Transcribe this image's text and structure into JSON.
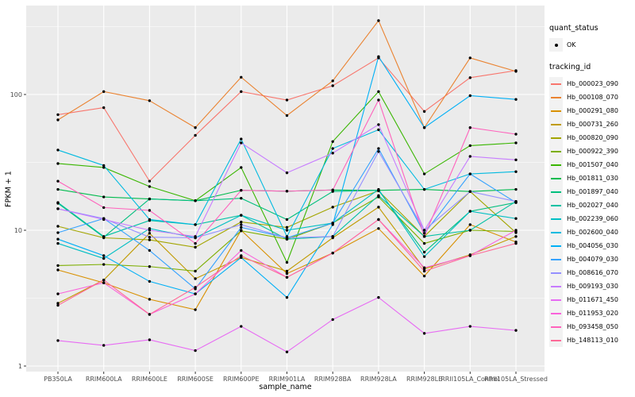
{
  "figure": {
    "panel_background": "#EBEBEB",
    "gridline_color": "#FFFFFF",
    "tick_label_color": "#4D4D4D",
    "tick_mark_color": "#333333",
    "point_color": "#000000"
  },
  "axes": {
    "x_title": "sample_name",
    "y_title": "FPKM + 1",
    "y_tick_labels": [
      "1",
      "10",
      "100"
    ]
  },
  "legend": {
    "quant_status_title": "quant_status",
    "quant_status_items": [
      {
        "label": "OK",
        "symbol": "black-point"
      }
    ],
    "tracking_id_title": "tracking_id"
  },
  "chart_data": {
    "type": "line",
    "title": "",
    "xlabel": "sample_name",
    "ylabel": "FPKM + 1",
    "y_scale": "log10",
    "ylim": [
      0.9,
      450
    ],
    "y_ticks": [
      1,
      10,
      100
    ],
    "y_minor_ticks": [
      3.1623,
      31.623,
      316.23
    ],
    "grid": true,
    "legend_position": "right",
    "point_marker": "small black dot at every vertex",
    "values_note": "values estimated from pixel positions on log axis",
    "categories": [
      "PB350LA",
      "RRIM600LA",
      "RRIM600LE",
      "RRIM600SE",
      "RRIM600PE",
      "RRIM901LA",
      "RRIM928BA",
      "RRIM928LA",
      "RRIM928LE",
      "RRII105LA_Control",
      "RRII105LA_Stressed"
    ],
    "quant_status_all_points": "OK",
    "series": [
      {
        "name": "Hb_000023_090",
        "color": "#F8766D",
        "values": [
          71,
          80,
          23,
          50,
          105,
          91,
          116,
          186,
          75,
          133,
          150
        ]
      },
      {
        "name": "Hb_000108_070",
        "color": "#EA8331",
        "values": [
          65,
          105,
          90,
          57,
          134,
          70,
          126,
          350,
          57,
          186,
          148
        ]
      },
      {
        "name": "Hb_000291_080",
        "color": "#D89000",
        "values": [
          5.1,
          4.1,
          3.1,
          2.6,
          10,
          4.8,
          6.8,
          10.3,
          4.6,
          11,
          8.2
        ]
      },
      {
        "name": "Hb_000731_260",
        "color": "#C09B00",
        "values": [
          2.9,
          4.3,
          9.5,
          4.4,
          6.3,
          5,
          8.8,
          14.8,
          5.2,
          6.6,
          9
        ]
      },
      {
        "name": "Hb_000820_090",
        "color": "#A3A500",
        "values": [
          10.7,
          8.8,
          8.5,
          7.5,
          11.5,
          10.5,
          14.8,
          19.5,
          9,
          19.3,
          9.6
        ]
      },
      {
        "name": "Hb_000922_390",
        "color": "#7CAE00",
        "values": [
          5.5,
          5.6,
          5.4,
          5,
          9.9,
          8.6,
          11.3,
          17.6,
          8,
          10,
          9.8
        ]
      },
      {
        "name": "Hb_001507_040",
        "color": "#39B600",
        "values": [
          31,
          29,
          21,
          16.5,
          29,
          5.8,
          45,
          105,
          26,
          42,
          44
        ]
      },
      {
        "name": "Hb_001811_030",
        "color": "#00BB4E",
        "values": [
          20,
          17.6,
          17,
          16.5,
          19.7,
          19.4,
          19.8,
          19.7,
          20,
          19.3,
          20
        ]
      },
      {
        "name": "Hb_001897_040",
        "color": "#00BF7D",
        "values": [
          15.8,
          8.9,
          17,
          16.5,
          17.2,
          12,
          19.3,
          19.7,
          6.9,
          13.8,
          16
        ]
      },
      {
        "name": "Hb_002027_040",
        "color": "#00C1A3",
        "values": [
          16,
          9,
          11.8,
          11,
          12.9,
          8.6,
          9,
          18,
          9,
          10,
          16.3
        ]
      },
      {
        "name": "Hb_002239_060",
        "color": "#00BFC4",
        "values": [
          8,
          6.2,
          10.3,
          8.8,
          12.9,
          10,
          11.3,
          20,
          6.4,
          13.8,
          12.2
        ]
      },
      {
        "name": "Hb_002600_040",
        "color": "#00BAE0",
        "values": [
          39,
          30,
          12,
          11,
          47,
          9,
          40,
          55,
          20,
          26,
          27
        ]
      },
      {
        "name": "Hb_004056_030",
        "color": "#00B0F6",
        "values": [
          8.6,
          6.5,
          4.2,
          3.4,
          6.3,
          3.2,
          11,
          190,
          57,
          98,
          92
        ]
      },
      {
        "name": "Hb_004079_030",
        "color": "#35A2FF",
        "values": [
          9.6,
          12.2,
          7.1,
          3.7,
          10.5,
          8.8,
          11.3,
          40,
          9.5,
          26,
          16
        ]
      },
      {
        "name": "Hb_008616_070",
        "color": "#9590FF",
        "values": [
          14.4,
          12.2,
          8.9,
          8.8,
          11,
          8.8,
          9,
          38,
          10,
          19.3,
          16.3
        ]
      },
      {
        "name": "Hb_009193_030",
        "color": "#C77CFF",
        "values": [
          14.4,
          12,
          10,
          9,
          44,
          26.5,
          37,
          60,
          10,
          35,
          33
        ]
      },
      {
        "name": "Hb_011671_450",
        "color": "#E76BF3",
        "values": [
          1.54,
          1.42,
          1.56,
          1.3,
          1.96,
          1.27,
          2.2,
          3.2,
          1.74,
          1.96,
          1.83
        ]
      },
      {
        "name": "Hb_011953_020",
        "color": "#FA62DB",
        "values": [
          3.4,
          4.1,
          2.4,
          3.4,
          7.1,
          4.5,
          6.8,
          12,
          5.3,
          6.5,
          10
        ]
      },
      {
        "name": "Hb_093458_050",
        "color": "#FF62BC",
        "values": [
          23,
          14.7,
          14,
          8,
          19.7,
          19.4,
          19.8,
          91,
          9,
          57,
          51
        ]
      },
      {
        "name": "Hb_148113_010",
        "color": "#FF6A98",
        "values": [
          2.8,
          4.3,
          2.4,
          3.8,
          6.5,
          4.5,
          6.8,
          12,
          5,
          6.5,
          8
        ]
      }
    ]
  }
}
